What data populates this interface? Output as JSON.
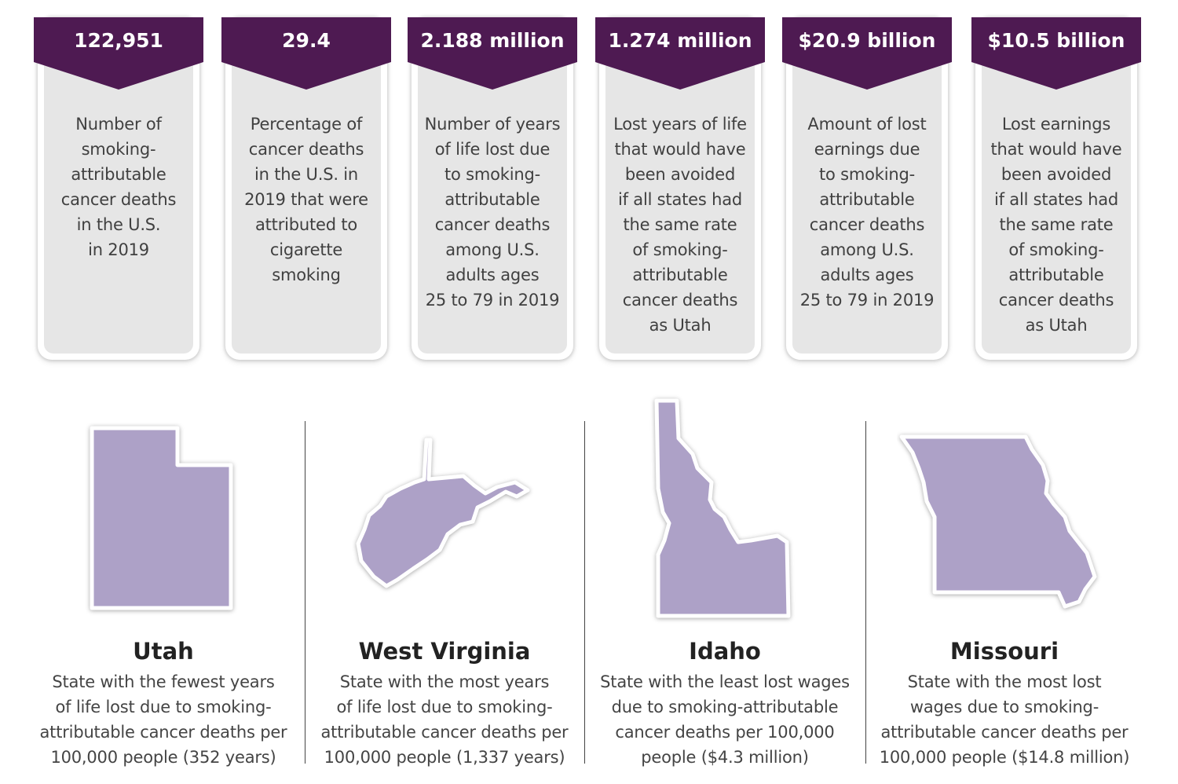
{
  "colors": {
    "banner": "#4e1a52",
    "card_fill": "#e6e6e6",
    "state_fill": "#ada1c7",
    "text": "#404040"
  },
  "stats": [
    {
      "value": "122,951",
      "description": "Number of\nsmoking-\nattributable\ncancer deaths\nin the U.S.\nin 2019"
    },
    {
      "value": "29.4",
      "description": "Percentage of\ncancer deaths\nin the U.S. in\n2019 that were\nattributed to\ncigarette\nsmoking"
    },
    {
      "value": "2.188 million",
      "description": "Number of years\nof life lost due\nto smoking-\nattributable\ncancer deaths\namong U.S.\nadults ages\n25 to 79 in 2019"
    },
    {
      "value": "1.274 million",
      "description": "Lost years of life\nthat would have\nbeen avoided\nif all states had\nthe same rate\nof smoking-\nattributable\ncancer deaths\nas Utah"
    },
    {
      "value": "$20.9 billion",
      "description": "Amount of lost\nearnings due\nto smoking-\nattributable\ncancer deaths\namong U.S.\nadults ages\n25 to 79 in 2019"
    },
    {
      "value": "$10.5 billion",
      "description": "Lost earnings\nthat would have\nbeen avoided\nif all states had\nthe same rate\nof smoking-\nattributable\ncancer deaths\nas Utah"
    }
  ],
  "states": [
    {
      "name": "Utah",
      "icon": "utah-state-icon",
      "description": "State with the fewest years\nof life lost due to smoking-\nattributable cancer deaths per\n100,000 people (352 years)"
    },
    {
      "name": "West Virginia",
      "icon": "west-virginia-state-icon",
      "description": "State with the most years\nof life lost due to smoking-\nattributable cancer deaths per\n100,000 people (1,337 years)"
    },
    {
      "name": "Idaho",
      "icon": "idaho-state-icon",
      "description": "State with the least lost wages\ndue to smoking-attributable\ncancer deaths per 100,000\npeople ($4.3 million)"
    },
    {
      "name": "Missouri",
      "icon": "missouri-state-icon",
      "description": "State with the most lost\nwages due to smoking-\nattributable cancer deaths per\n100,000 people ($14.8 million)"
    }
  ]
}
